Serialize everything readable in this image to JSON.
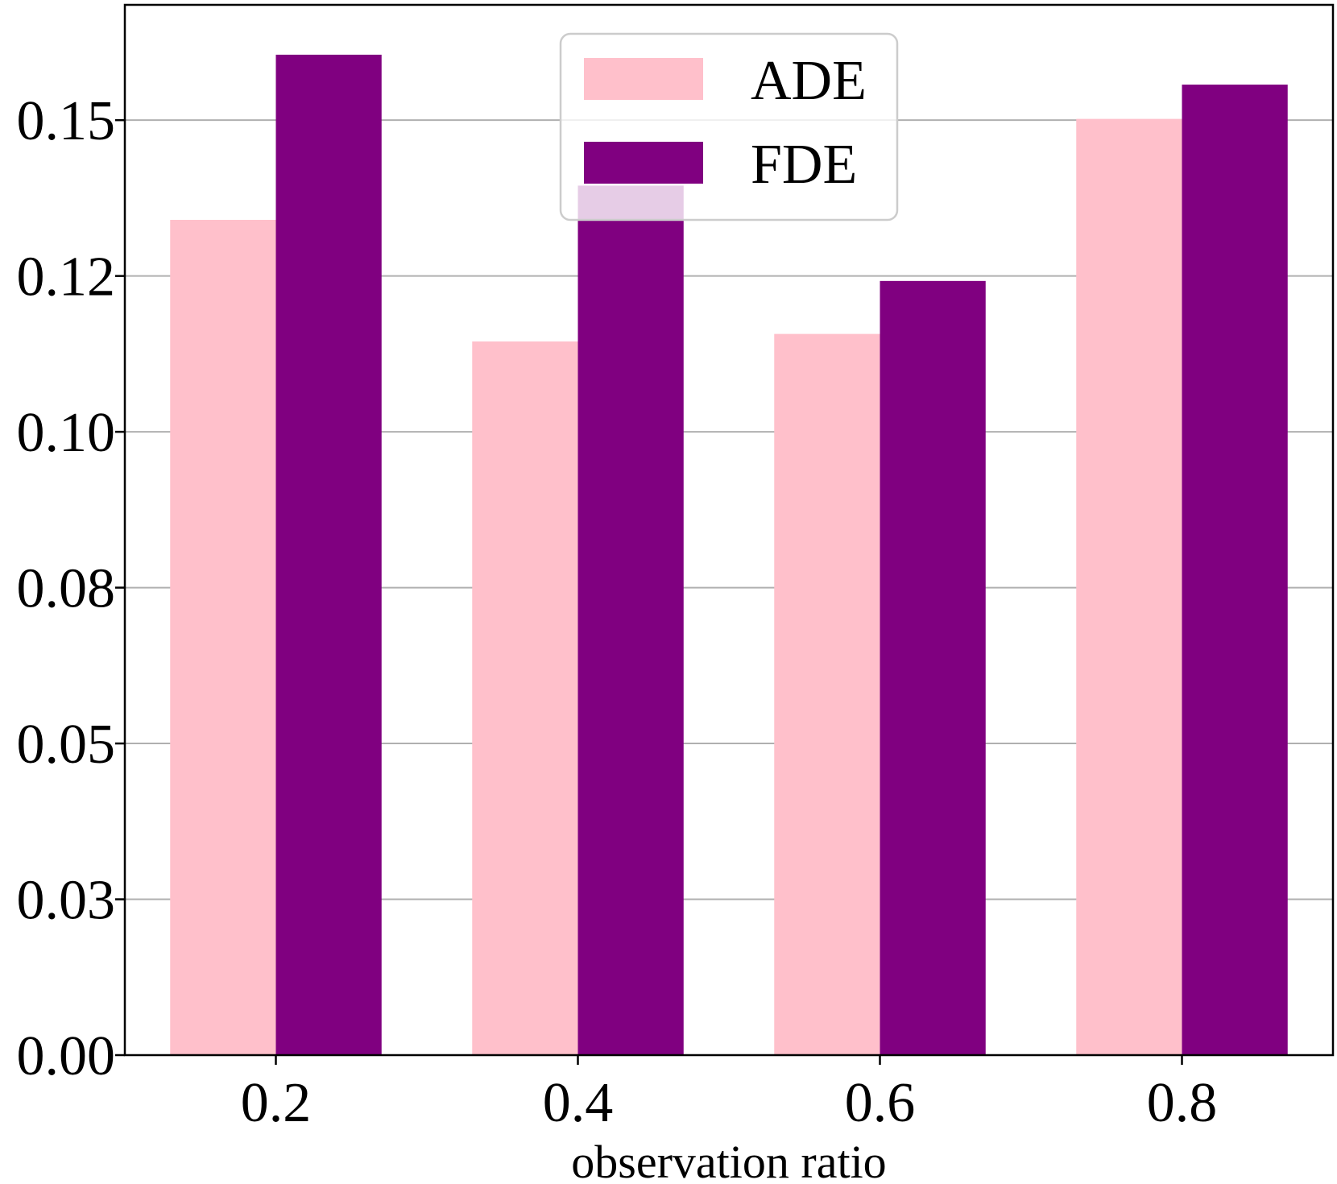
{
  "chart_data": {
    "type": "bar",
    "title": "",
    "xlabel": "observation ratio",
    "ylabel": "",
    "categories": [
      "0.2",
      "0.4",
      "0.6",
      "0.8"
    ],
    "series": [
      {
        "name": "ADE",
        "color": "#ffc0cb",
        "values": [
          0.134,
          0.1145,
          0.1157,
          0.1502
        ]
      },
      {
        "name": "FDE",
        "color": "#800080",
        "values": [
          0.1605,
          0.1395,
          0.1242,
          0.1557
        ]
      }
    ],
    "yticks": [
      {
        "value": 0.0,
        "label": "0.00"
      },
      {
        "value": 0.025,
        "label": "0.03"
      },
      {
        "value": 0.05,
        "label": "0.05"
      },
      {
        "value": 0.075,
        "label": "0.08"
      },
      {
        "value": 0.1,
        "label": "0.10"
      },
      {
        "value": 0.125,
        "label": "0.12"
      },
      {
        "value": 0.15,
        "label": "0.15"
      }
    ],
    "ylim": [
      0,
      0.1685
    ],
    "grid": "y",
    "legend_position": "top-center"
  }
}
